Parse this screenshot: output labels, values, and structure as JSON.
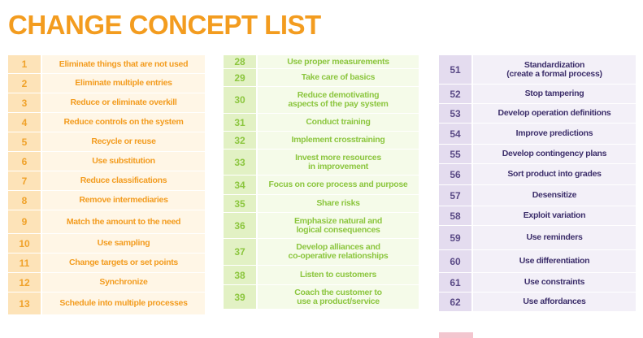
{
  "title": "CHANGE CONCEPT LIST",
  "columns": [
    {
      "items": [
        {
          "num": "1",
          "text": "Eliminate things that are not used"
        },
        {
          "num": "2",
          "text": "Eliminate multiple entries"
        },
        {
          "num": "3",
          "text": "Reduce or eliminate overkill"
        },
        {
          "num": "4",
          "text": "Reduce controls on the system"
        },
        {
          "num": "5",
          "text": "Recycle or reuse"
        },
        {
          "num": "6",
          "text": "Use substitution"
        },
        {
          "num": "7",
          "text": "Reduce classifications"
        },
        {
          "num": "8",
          "text": "Remove intermediaries"
        },
        {
          "num": "9",
          "text": "Match the amount to the need"
        },
        {
          "num": "10",
          "text": "Use sampling"
        },
        {
          "num": "11",
          "text": "Change targets or set points"
        },
        {
          "num": "12",
          "text": "Synchronize"
        },
        {
          "num": "13",
          "text": "Schedule into multiple processes"
        }
      ]
    },
    {
      "items": [
        {
          "num": "28",
          "text": "Use proper measurements"
        },
        {
          "num": "29",
          "text": "Take care of basics"
        },
        {
          "num": "30",
          "text": "Reduce demotivating\naspects of the pay system"
        },
        {
          "num": "31",
          "text": "Conduct training"
        },
        {
          "num": "32",
          "text": "Implement crosstraining"
        },
        {
          "num": "33",
          "text": "Invest more resources\nin improvement"
        },
        {
          "num": "34",
          "text": "Focus on core process and purpose"
        },
        {
          "num": "35",
          "text": "Share risks"
        },
        {
          "num": "36",
          "text": "Emphasize natural and\nlogical consequences"
        },
        {
          "num": "37",
          "text": "Develop alliances and\nco-operative relationships"
        },
        {
          "num": "38",
          "text": "Listen to customers"
        },
        {
          "num": "39",
          "text": "Coach the customer to\nuse a product/service"
        }
      ]
    },
    {
      "items": [
        {
          "num": "51",
          "text": "Standardization\n(create a formal process)"
        },
        {
          "num": "52",
          "text": "Stop tampering"
        },
        {
          "num": "53",
          "text": "Develop operation definitions"
        },
        {
          "num": "54",
          "text": "Improve predictions"
        },
        {
          "num": "55",
          "text": "Develop contingency plans"
        },
        {
          "num": "56",
          "text": "Sort product into grades"
        },
        {
          "num": "57",
          "text": "Desensitize"
        },
        {
          "num": "58",
          "text": "Exploit variation"
        },
        {
          "num": "59",
          "text": "Use reminders"
        },
        {
          "num": "60",
          "text": "Use differentiation"
        },
        {
          "num": "61",
          "text": "Use constraints"
        },
        {
          "num": "62",
          "text": "Use affordances"
        }
      ]
    }
  ]
}
